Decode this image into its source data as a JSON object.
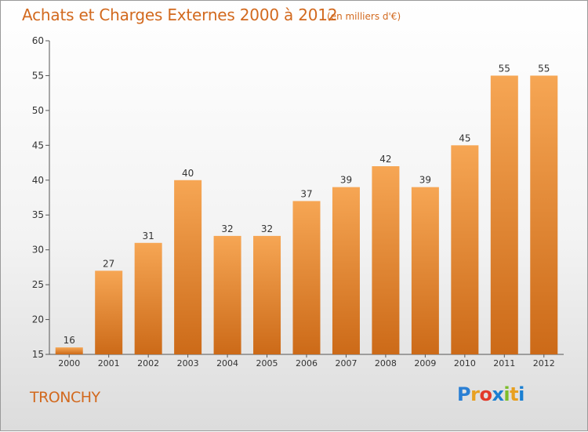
{
  "title": "Achats et Charges Externes 2000 à 2012",
  "subtitle": "(en milliers d'€)",
  "commune": "TRONCHY",
  "logo": "Proxiti",
  "colors": {
    "accent": "#d2691e",
    "bar_top": "#f6a654",
    "bar_bottom": "#cc6a18",
    "axis": "#555555"
  },
  "chart_data": {
    "type": "bar",
    "title": "Achats et Charges Externes 2000 à 2012",
    "subtitle": "(en milliers d'€)",
    "categories": [
      "2000",
      "2001",
      "2002",
      "2003",
      "2004",
      "2005",
      "2006",
      "2007",
      "2008",
      "2009",
      "2010",
      "2011",
      "2012"
    ],
    "values": [
      16,
      27,
      31,
      40,
      32,
      32,
      37,
      39,
      42,
      39,
      45,
      55,
      55
    ],
    "ylim": [
      15,
      60
    ],
    "yticks": [
      15,
      20,
      25,
      30,
      35,
      40,
      45,
      50,
      55,
      60
    ],
    "grid": false,
    "data_labels": true
  }
}
